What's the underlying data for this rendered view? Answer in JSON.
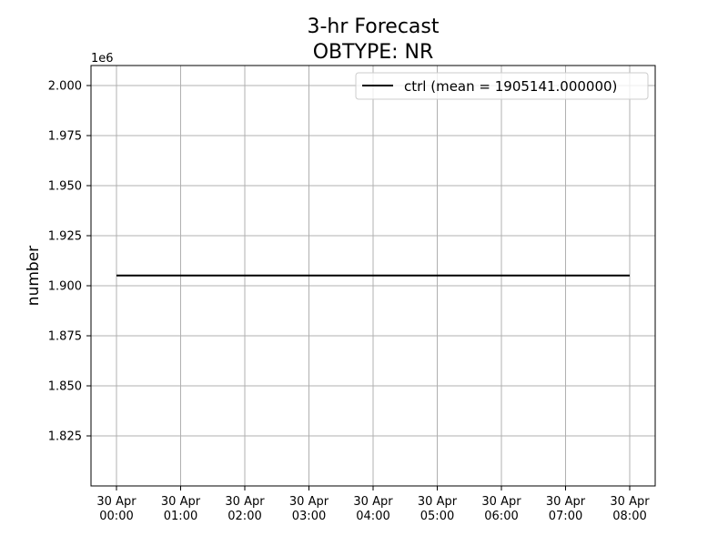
{
  "chart_data": {
    "type": "line",
    "title": "3-hr Forecast",
    "subtitle": "OBTYPE: NR",
    "xlabel": "",
    "ylabel": "number",
    "y_offset_text": "1e6",
    "x": [
      "30 Apr 00:00",
      "30 Apr 01:00",
      "30 Apr 02:00",
      "30 Apr 03:00",
      "30 Apr 04:00",
      "30 Apr 05:00",
      "30 Apr 06:00",
      "30 Apr 07:00",
      "30 Apr 08:00"
    ],
    "x_tick_labels": [
      [
        "30 Apr",
        "00:00"
      ],
      [
        "30 Apr",
        "01:00"
      ],
      [
        "30 Apr",
        "02:00"
      ],
      [
        "30 Apr",
        "03:00"
      ],
      [
        "30 Apr",
        "04:00"
      ],
      [
        "30 Apr",
        "05:00"
      ],
      [
        "30 Apr",
        "06:00"
      ],
      [
        "30 Apr",
        "07:00"
      ],
      [
        "30 Apr",
        "08:00"
      ]
    ],
    "y_ticks": [
      1825000,
      1850000,
      1875000,
      1900000,
      1925000,
      1950000,
      1975000,
      2000000
    ],
    "y_tick_labels": [
      "1.825",
      "1.850",
      "1.875",
      "1.900",
      "1.925",
      "1.950",
      "1.975",
      "2.000"
    ],
    "ylim": [
      1800000,
      2010000
    ],
    "grid": true,
    "legend_position": "top-right",
    "series": [
      {
        "name": "ctrl (mean = 1905141.000000)",
        "color": "#000000",
        "values": [
          1905141,
          1905141,
          1905141,
          1905141,
          1905141,
          1905141,
          1905141,
          1905141,
          1905141
        ]
      }
    ]
  }
}
